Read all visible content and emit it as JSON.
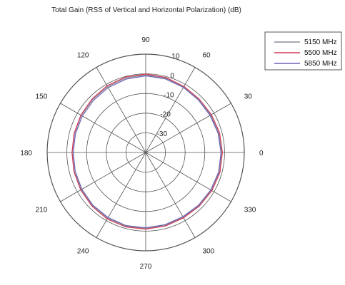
{
  "chart_data": {
    "type": "polar-line",
    "title": "Total Gain (RSS of Vertical and Horizontal Polarization) (dB)",
    "angle_unit": "deg",
    "angular_ticks": [
      "0",
      "30",
      "60",
      "90",
      "120",
      "150",
      "180",
      "210",
      "240",
      "270",
      "300",
      "330"
    ],
    "angular_tick_values": [
      0,
      30,
      60,
      90,
      120,
      150,
      180,
      210,
      240,
      270,
      300,
      330
    ],
    "radial_ticks": [
      "-30",
      "-20",
      "-10",
      "0",
      "10"
    ],
    "radial_tick_values": [
      -30,
      -20,
      -10,
      0,
      10
    ],
    "radial_range": [
      -40,
      10
    ],
    "grid": true,
    "legend_position": "top-right",
    "series": [
      {
        "name": "5150 MHz",
        "color": "#8a8f98",
        "points": [
          [
            0,
            -1.4
          ],
          [
            15,
            -1.6
          ],
          [
            30,
            -1.9
          ],
          [
            45,
            -1.8
          ],
          [
            60,
            -1.4
          ],
          [
            75,
            -0.9
          ],
          [
            90,
            -0.5
          ],
          [
            105,
            -0.8
          ],
          [
            120,
            -1.3
          ],
          [
            135,
            -1.9
          ],
          [
            150,
            -2.3
          ],
          [
            165,
            -2.6
          ],
          [
            180,
            -2.7
          ],
          [
            195,
            -2.5
          ],
          [
            210,
            -2.2
          ],
          [
            225,
            -1.8
          ],
          [
            240,
            -1.4
          ],
          [
            255,
            -1.2
          ],
          [
            270,
            -1.4
          ],
          [
            285,
            -1.7
          ],
          [
            300,
            -1.9
          ],
          [
            315,
            -1.8
          ],
          [
            330,
            -1.5
          ],
          [
            345,
            -1.3
          ],
          [
            360,
            -1.4
          ]
        ]
      },
      {
        "name": "5500 MHz",
        "color": "#d43c57",
        "points": [
          [
            0,
            -1.1
          ],
          [
            15,
            -1.2
          ],
          [
            30,
            -1.5
          ],
          [
            45,
            -1.6
          ],
          [
            60,
            -1.2
          ],
          [
            75,
            -0.5
          ],
          [
            90,
            -0.1
          ],
          [
            105,
            -0.3
          ],
          [
            120,
            -0.8
          ],
          [
            135,
            -1.5
          ],
          [
            150,
            -2.0
          ],
          [
            165,
            -2.4
          ],
          [
            180,
            -2.6
          ],
          [
            195,
            -2.3
          ],
          [
            210,
            -1.9
          ],
          [
            225,
            -1.4
          ],
          [
            240,
            -0.9
          ],
          [
            255,
            -0.8
          ],
          [
            270,
            -1.0
          ],
          [
            285,
            -1.3
          ],
          [
            300,
            -1.6
          ],
          [
            315,
            -1.5
          ],
          [
            330,
            -1.2
          ],
          [
            345,
            -1.0
          ],
          [
            360,
            -1.1
          ]
        ]
      },
      {
        "name": "5850 MHz",
        "color": "#6e63b5",
        "points": [
          [
            0,
            -1.8
          ],
          [
            15,
            -2.0
          ],
          [
            30,
            -2.3
          ],
          [
            45,
            -2.2
          ],
          [
            60,
            -1.8
          ],
          [
            75,
            -1.3
          ],
          [
            90,
            -1.0
          ],
          [
            105,
            -1.4
          ],
          [
            120,
            -1.9
          ],
          [
            135,
            -2.5
          ],
          [
            150,
            -2.9
          ],
          [
            165,
            -3.1
          ],
          [
            180,
            -3.2
          ],
          [
            195,
            -3.0
          ],
          [
            210,
            -2.6
          ],
          [
            225,
            -2.1
          ],
          [
            240,
            -1.8
          ],
          [
            255,
            -1.5
          ],
          [
            270,
            -1.7
          ],
          [
            285,
            -2.0
          ],
          [
            300,
            -2.3
          ],
          [
            315,
            -2.1
          ],
          [
            330,
            -1.9
          ],
          [
            345,
            -1.7
          ],
          [
            360,
            -1.8
          ]
        ]
      }
    ]
  }
}
